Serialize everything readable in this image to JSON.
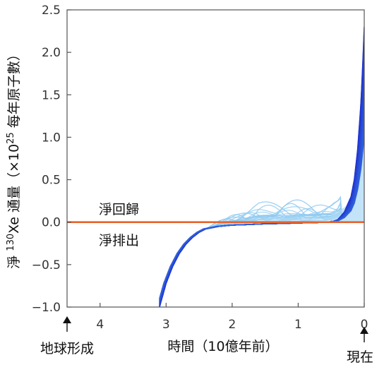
{
  "chart_data": {
    "type": "line",
    "title": "",
    "xlabel": "時間（10億年前）",
    "ylabel_prefix": "淨 ",
    "ylabel_sup": "130",
    "ylabel_main": "Xe 通量（×10",
    "ylabel_exp": "25",
    "ylabel_suffix": " 每年原子數）",
    "xlim": [
      4.5,
      0
    ],
    "ylim": [
      -1.0,
      2.5
    ],
    "x_ticks": [
      4,
      3,
      2,
      1,
      0
    ],
    "x_tick_labels": [
      "4",
      "3",
      "2",
      "1",
      "0"
    ],
    "y_ticks": [
      -1.0,
      -0.5,
      0.0,
      0.5,
      1.0,
      1.5,
      2.0,
      2.5
    ],
    "y_tick_labels": [
      "−1.0",
      "−0.5",
      "0.0",
      "0.5",
      "1.0",
      "1.5",
      "2.0",
      "2.5"
    ],
    "grid": false,
    "reference_line": {
      "y": 0.0,
      "color": "#e8632b"
    },
    "series_colors": {
      "dark": "#1f2fd0",
      "light": "#a9d8f5"
    },
    "main_series": {
      "x": [
        3.1,
        3.0,
        2.9,
        2.8,
        2.7,
        2.6,
        2.5,
        2.4,
        2.2,
        2.0,
        1.8,
        1.5,
        1.2,
        1.0,
        0.8,
        0.6,
        0.5,
        0.4,
        0.3,
        0.2,
        0.15,
        0.1,
        0.05,
        0.02,
        0.0
      ],
      "y": [
        -1.0,
        -0.72,
        -0.52,
        -0.37,
        -0.26,
        -0.18,
        -0.12,
        -0.08,
        -0.05,
        -0.035,
        -0.03,
        -0.02,
        -0.015,
        -0.01,
        -0.006,
        -0.003,
        0.0,
        0.03,
        0.12,
        0.3,
        0.5,
        0.85,
        1.4,
        1.9,
        2.3
      ]
    },
    "annotations": {
      "net_return": "淨回歸",
      "net_outgassing": "淨排出",
      "earth_formation": "地球形成",
      "present": "現在"
    }
  }
}
